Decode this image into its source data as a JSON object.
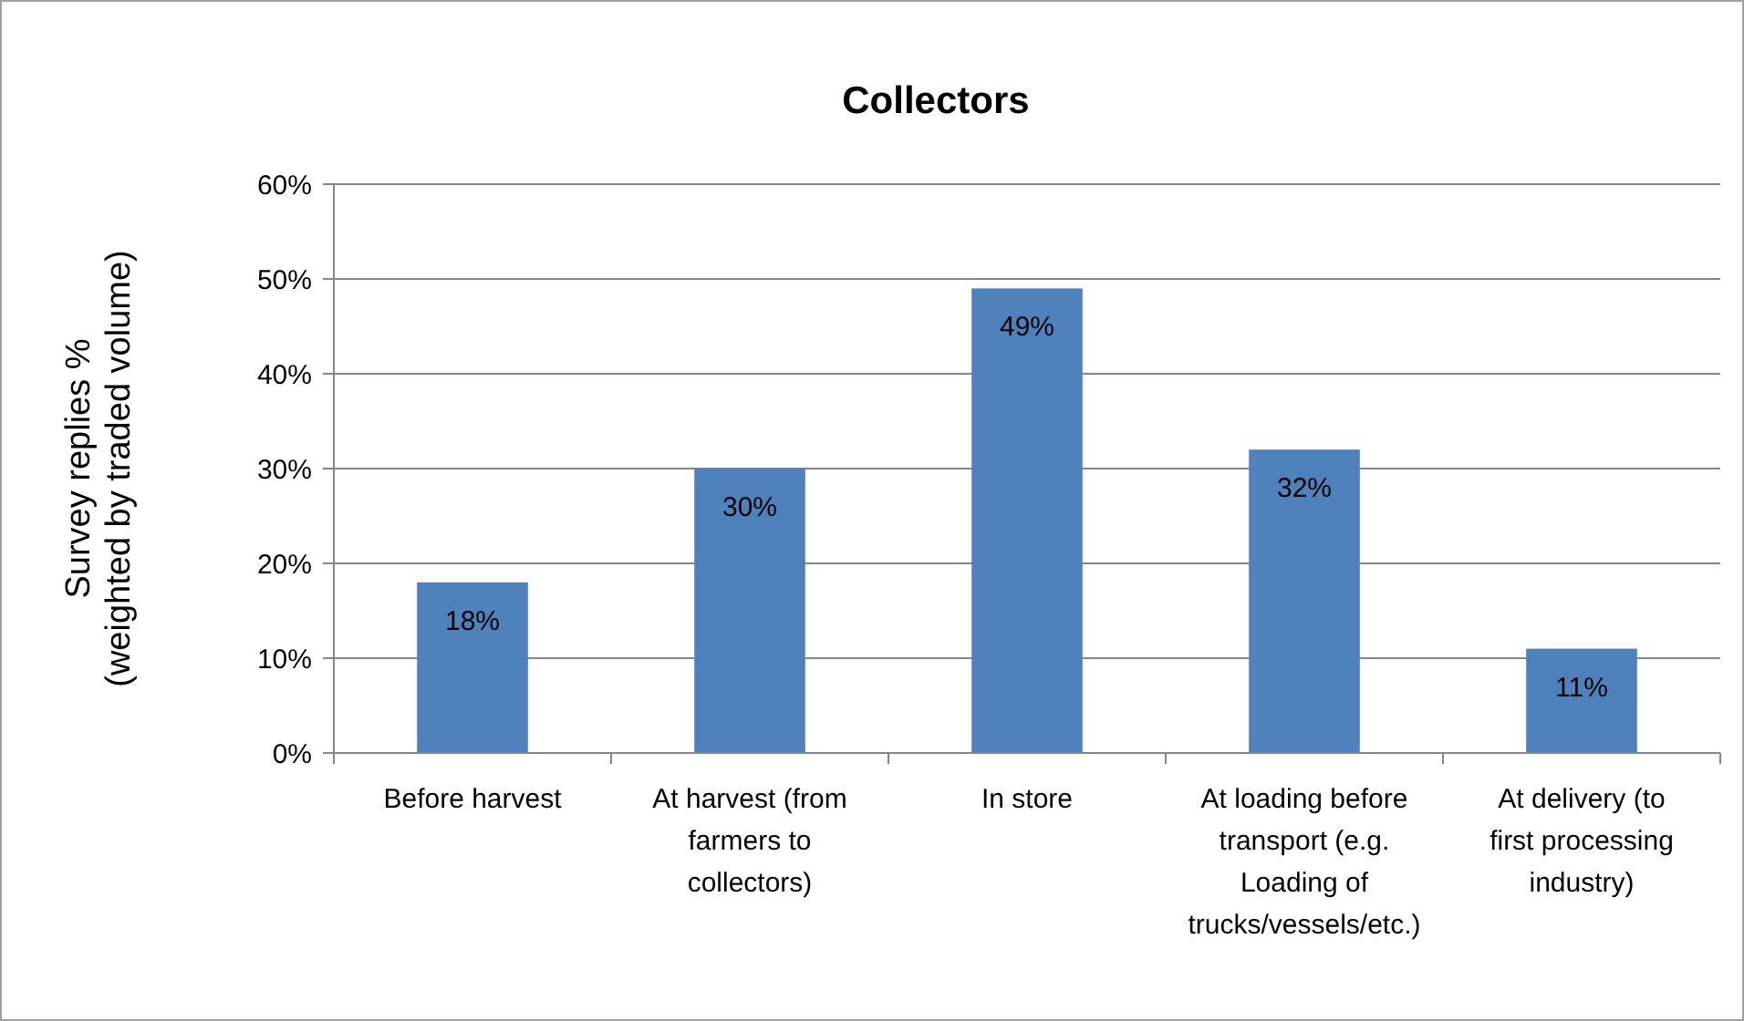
{
  "chart_data": {
    "type": "bar",
    "title": "Collectors",
    "ylabel": "Survey replies %\n(weighted by traded volume)",
    "categories": [
      "Before harvest",
      "At harvest (from farmers to collectors)",
      "In store",
      "At loading before transport (e.g. Loading of trucks/vessels/etc.)",
      "At delivery (to first processing industry)"
    ],
    "values": [
      18,
      30,
      49,
      32,
      11
    ],
    "value_labels": [
      "18%",
      "30%",
      "49%",
      "32%",
      "11%"
    ],
    "color": "#4f81bd",
    "ylim": [
      0,
      60
    ],
    "yticks": [
      {
        "value": 0,
        "label": "0%"
      },
      {
        "value": 10,
        "label": "10%"
      },
      {
        "value": 20,
        "label": "20%"
      },
      {
        "value": 30,
        "label": "30%"
      },
      {
        "value": 40,
        "label": "40%"
      },
      {
        "value": 50,
        "label": "50%"
      },
      {
        "value": 60,
        "label": "60%"
      }
    ],
    "grid": "y"
  }
}
